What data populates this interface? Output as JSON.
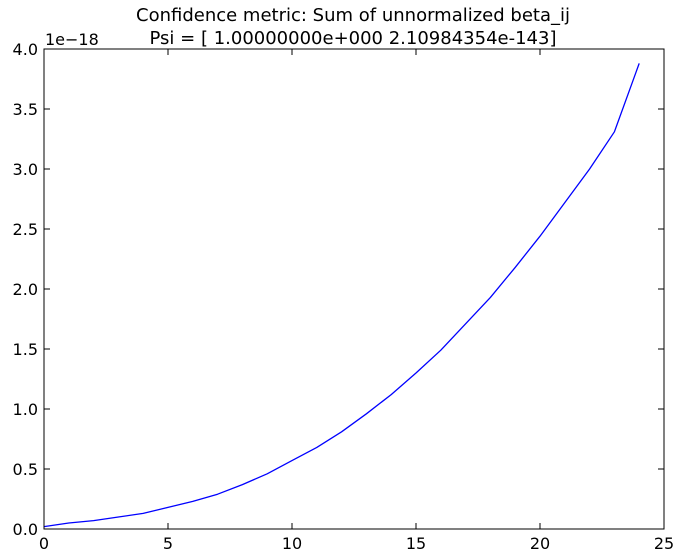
{
  "chart_data": {
    "type": "line",
    "title_lines": [
      "Confidence metric: Sum of unnormalized beta_ij",
      "Psi = [  1.00000000e+000   2.10984354e-143]"
    ],
    "xlabel": "",
    "ylabel": "",
    "y_offset_label": "1e−18",
    "xlim": [
      0,
      25
    ],
    "ylim": [
      0,
      4.0
    ],
    "x_ticks": [
      "0",
      "5",
      "10",
      "15",
      "20",
      "25"
    ],
    "y_ticks": [
      "0.0",
      "0.5",
      "1.0",
      "1.5",
      "2.0",
      "2.5",
      "3.0",
      "3.5",
      "4.0"
    ],
    "grid": false,
    "line_color": "#0000ff",
    "series": [
      {
        "x": [
          0,
          1,
          2,
          3,
          4,
          5,
          6,
          7,
          8,
          9,
          10,
          11,
          12,
          13,
          14,
          15,
          16,
          17,
          18,
          19,
          20,
          21,
          22,
          23,
          24
        ],
        "values": [
          0.02,
          0.05,
          0.07,
          0.1,
          0.13,
          0.18,
          0.23,
          0.29,
          0.37,
          0.46,
          0.57,
          0.68,
          0.81,
          0.96,
          1.12,
          1.3,
          1.49,
          1.71,
          1.93,
          2.18,
          2.44,
          2.72,
          3.0,
          3.31,
          3.88
        ]
      }
    ]
  }
}
